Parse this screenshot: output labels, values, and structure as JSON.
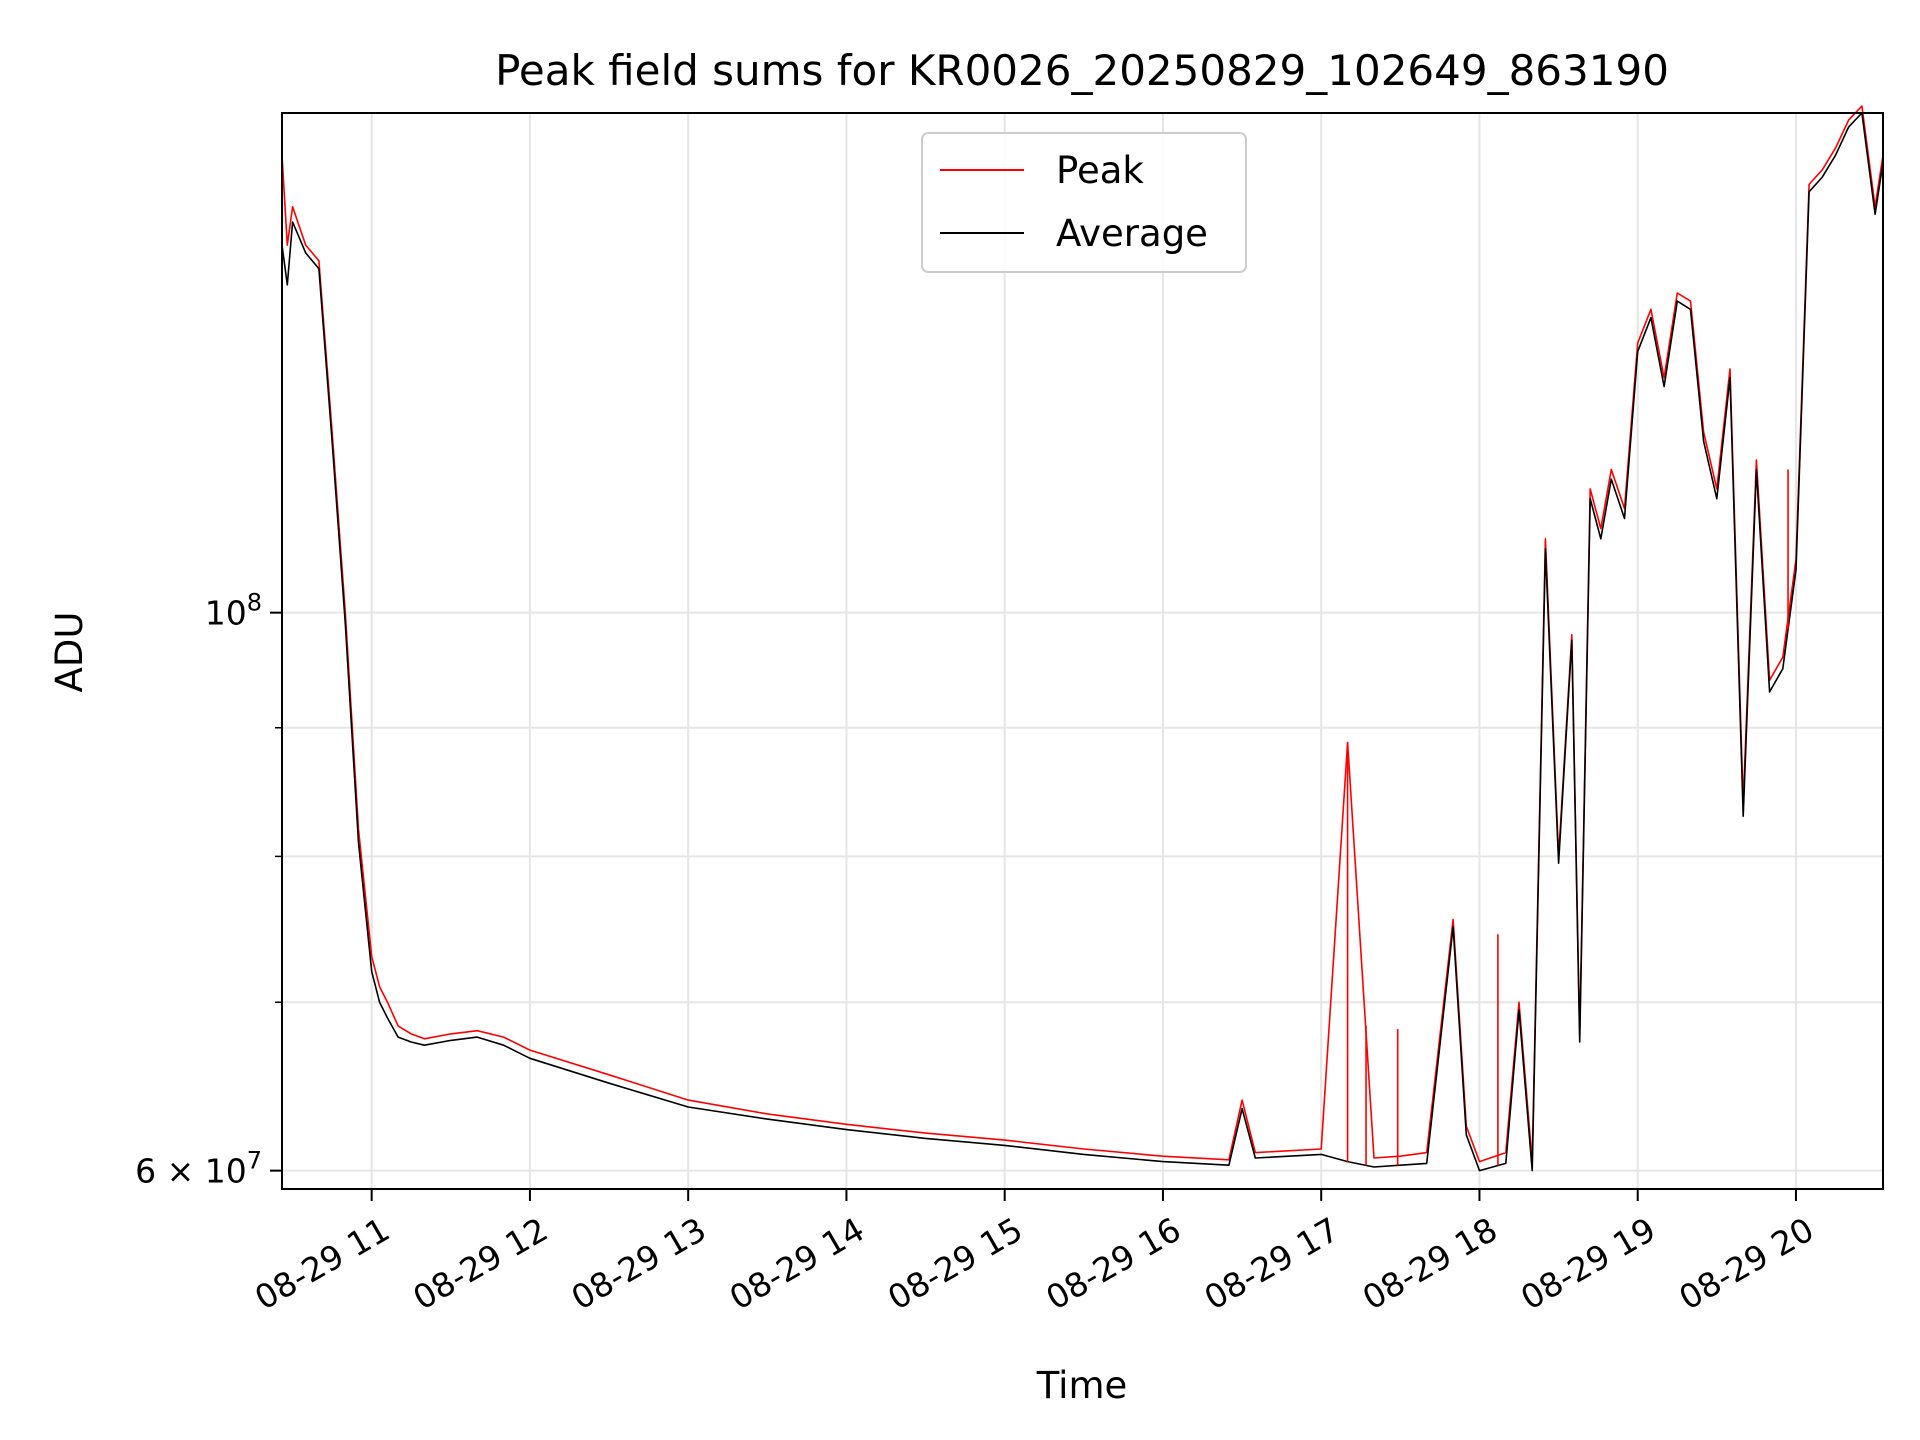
{
  "chart_data": {
    "type": "line",
    "title": "Peak field sums for KR0026_20250829_102649_863190",
    "xlabel": "Time",
    "ylabel": "ADU",
    "yscale": "log",
    "xlim": [
      "2025-08-29 10:26",
      "2025-08-29 20:33"
    ],
    "ylim": [
      59000000,
      158000000
    ],
    "x_ticks": [
      "08-29 11",
      "08-29 12",
      "08-29 13",
      "08-29 14",
      "08-29 15",
      "08-29 16",
      "08-29 17",
      "08-29 18",
      "08-29 19",
      "08-29 20"
    ],
    "y_ticks": [
      {
        "value": 100000000,
        "base": "10",
        "exp": "8",
        "mantissa": ""
      },
      {
        "value": 60000000,
        "base": "10",
        "exp": "7",
        "mantissa": "6 × "
      }
    ],
    "y_minor_ticks": [
      70000000,
      80000000,
      90000000
    ],
    "grid": true,
    "legend_position": "top-center",
    "series": [
      {
        "name": "Peak",
        "color": "#ff0000",
        "x": [
          "2025-08-29 10:26",
          "2025-08-29 10:28",
          "2025-08-29 10:30",
          "2025-08-29 10:35",
          "2025-08-29 10:40",
          "2025-08-29 10:45",
          "2025-08-29 10:50",
          "2025-08-29 10:55",
          "2025-08-29 11:00",
          "2025-08-29 11:03",
          "2025-08-29 11:06",
          "2025-08-29 11:10",
          "2025-08-29 11:15",
          "2025-08-29 11:20",
          "2025-08-29 11:30",
          "2025-08-29 11:40",
          "2025-08-29 11:50",
          "2025-08-29 12:00",
          "2025-08-29 12:30",
          "2025-08-29 13:00",
          "2025-08-29 13:30",
          "2025-08-29 14:00",
          "2025-08-29 14:30",
          "2025-08-29 15:00",
          "2025-08-29 15:30",
          "2025-08-29 16:00",
          "2025-08-29 16:25",
          "2025-08-29 16:30",
          "2025-08-29 16:35",
          "2025-08-29 17:00",
          "2025-08-29 17:10",
          "2025-08-29 17:20",
          "2025-08-29 17:30",
          "2025-08-29 17:40",
          "2025-08-29 17:50",
          "2025-08-29 17:55",
          "2025-08-29 18:00",
          "2025-08-29 18:10",
          "2025-08-29 18:15",
          "2025-08-29 18:20",
          "2025-08-29 18:25",
          "2025-08-29 18:30",
          "2025-08-29 18:35",
          "2025-08-29 18:38",
          "2025-08-29 18:42",
          "2025-08-29 18:46",
          "2025-08-29 18:50",
          "2025-08-29 18:55",
          "2025-08-29 19:00",
          "2025-08-29 19:05",
          "2025-08-29 19:10",
          "2025-08-29 19:15",
          "2025-08-29 19:20",
          "2025-08-29 19:25",
          "2025-08-29 19:30",
          "2025-08-29 19:35",
          "2025-08-29 19:40",
          "2025-08-29 19:45",
          "2025-08-29 19:50",
          "2025-08-29 19:55",
          "2025-08-29 20:00",
          "2025-08-29 20:05",
          "2025-08-29 20:10",
          "2025-08-29 20:15",
          "2025-08-29 20:20",
          "2025-08-29 20:25",
          "2025-08-29 20:30",
          "2025-08-29 20:33"
        ],
        "y": [
          152000000,
          140000000,
          145000000,
          140000000,
          138000000,
          118000000,
          100000000,
          82000000,
          73000000,
          71000000,
          70000000,
          68500000,
          68000000,
          67700000,
          68000000,
          68200000,
          67800000,
          67000000,
          65500000,
          64000000,
          63200000,
          62600000,
          62100000,
          61700000,
          61200000,
          60800000,
          60600000,
          64000000,
          61000000,
          61200000,
          88800000,
          60700000,
          60800000,
          61000000,
          75500000,
          62500000,
          60500000,
          61000000,
          70000000,
          60500000,
          107000000,
          80000000,
          98000000,
          68000000,
          112000000,
          108000000,
          114000000,
          110000000,
          128000000,
          132000000,
          124000000,
          134000000,
          133000000,
          118000000,
          112000000,
          125000000,
          84000000,
          115000000,
          94000000,
          96000000,
          105000000,
          148000000,
          150000000,
          153000000,
          157000000,
          159000000,
          145000000,
          152000000
        ]
      },
      {
        "name": "Average",
        "color": "#000000",
        "x": [
          "2025-08-29 10:26",
          "2025-08-29 10:28",
          "2025-08-29 10:30",
          "2025-08-29 10:35",
          "2025-08-29 10:40",
          "2025-08-29 10:45",
          "2025-08-29 10:50",
          "2025-08-29 10:55",
          "2025-08-29 11:00",
          "2025-08-29 11:03",
          "2025-08-29 11:06",
          "2025-08-29 11:10",
          "2025-08-29 11:15",
          "2025-08-29 11:20",
          "2025-08-29 11:30",
          "2025-08-29 11:40",
          "2025-08-29 11:50",
          "2025-08-29 12:00",
          "2025-08-29 12:30",
          "2025-08-29 13:00",
          "2025-08-29 13:30",
          "2025-08-29 14:00",
          "2025-08-29 14:30",
          "2025-08-29 15:00",
          "2025-08-29 15:30",
          "2025-08-29 16:00",
          "2025-08-29 16:25",
          "2025-08-29 16:30",
          "2025-08-29 16:35",
          "2025-08-29 17:00",
          "2025-08-29 17:10",
          "2025-08-29 17:20",
          "2025-08-29 17:30",
          "2025-08-29 17:40",
          "2025-08-29 17:50",
          "2025-08-29 17:55",
          "2025-08-29 18:00",
          "2025-08-29 18:10",
          "2025-08-29 18:15",
          "2025-08-29 18:20",
          "2025-08-29 18:25",
          "2025-08-29 18:30",
          "2025-08-29 18:35",
          "2025-08-29 18:38",
          "2025-08-29 18:42",
          "2025-08-29 18:46",
          "2025-08-29 18:50",
          "2025-08-29 18:55",
          "2025-08-29 19:00",
          "2025-08-29 19:05",
          "2025-08-29 19:10",
          "2025-08-29 19:15",
          "2025-08-29 19:20",
          "2025-08-29 19:25",
          "2025-08-29 19:30",
          "2025-08-29 19:35",
          "2025-08-29 19:40",
          "2025-08-29 19:45",
          "2025-08-29 19:50",
          "2025-08-29 19:55",
          "2025-08-29 20:00",
          "2025-08-29 20:05",
          "2025-08-29 20:10",
          "2025-08-29 20:15",
          "2025-08-29 20:20",
          "2025-08-29 20:25",
          "2025-08-29 20:30",
          "2025-08-29 20:33"
        ],
        "y": [
          140000000,
          135000000,
          143000000,
          139000000,
          137000000,
          117000000,
          99000000,
          81000000,
          72000000,
          70000000,
          69000000,
          67800000,
          67500000,
          67300000,
          67600000,
          67800000,
          67300000,
          66500000,
          65000000,
          63600000,
          62900000,
          62300000,
          61800000,
          61400000,
          60900000,
          60500000,
          60300000,
          63500000,
          60700000,
          60900000,
          60500000,
          60200000,
          60300000,
          60400000,
          75000000,
          62000000,
          60000000,
          60400000,
          69500000,
          60000000,
          106000000,
          79500000,
          97500000,
          67500000,
          111000000,
          107000000,
          113000000,
          109000000,
          127000000,
          131000000,
          123000000,
          133000000,
          132000000,
          117000000,
          111000000,
          124000000,
          83000000,
          114000000,
          93000000,
          95000000,
          104000000,
          147000000,
          149000000,
          152000000,
          156000000,
          158000000,
          144000000,
          151000000
        ]
      }
    ],
    "spikes": [
      {
        "x": "2025-08-29 17:10",
        "y": 88800000
      },
      {
        "x": "2025-08-29 17:17",
        "y": 68500000
      },
      {
        "x": "2025-08-29 17:29",
        "y": 68300000
      },
      {
        "x": "2025-08-29 18:07",
        "y": 74500000
      },
      {
        "x": "2025-08-29 19:57",
        "y": 114000000
      }
    ]
  },
  "legend": {
    "items": [
      {
        "label": "Peak",
        "color": "#ff0000"
      },
      {
        "label": "Average",
        "color": "#000000"
      }
    ]
  }
}
